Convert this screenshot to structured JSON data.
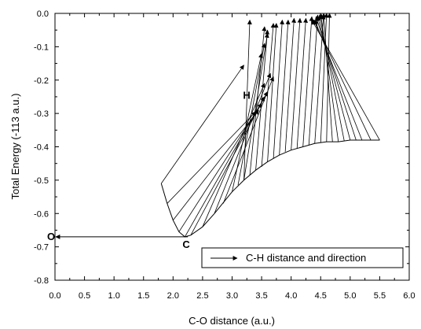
{
  "chart_data": {
    "type": "line",
    "title": "",
    "xlabel": "C-O distance (a.u.)",
    "ylabel": "Total Energy (-113  a.u.)",
    "xlim": [
      0.0,
      6.0
    ],
    "ylim": [
      -0.8,
      0.0
    ],
    "xticks": [
      "0.0",
      "0.5",
      "1.0",
      "1.5",
      "2.0",
      "2.5",
      "3.0",
      "3.5",
      "4.0",
      "4.5",
      "5.0",
      "5.5",
      "6.0"
    ],
    "yticks": [
      "-0.8",
      "-0.7",
      "-0.6",
      "-0.5",
      "-0.4",
      "-0.3",
      "-0.2",
      "-0.1",
      "0.0"
    ],
    "grid": false,
    "legend": {
      "position": "bottom-right",
      "entries": [
        {
          "label": "C-H distance and direction",
          "style": "arrow"
        }
      ]
    },
    "annotations": [
      {
        "text": "O",
        "x": 0.0,
        "y": -0.67
      },
      {
        "text": "C",
        "x": 2.25,
        "y": -0.67
      },
      {
        "text": "H",
        "x": 3.3,
        "y": -0.27
      }
    ],
    "energy_curve": {
      "x": [
        1.8,
        1.9,
        2.0,
        2.1,
        2.2,
        2.3,
        2.5,
        2.7,
        3.0,
        3.2,
        3.4,
        3.6,
        3.8,
        4.0,
        4.2,
        4.4,
        4.6,
        4.8,
        5.0,
        5.2,
        5.35,
        5.5
      ],
      "y": [
        -0.51,
        -0.57,
        -0.62,
        -0.655,
        -0.67,
        -0.665,
        -0.64,
        -0.6,
        -0.535,
        -0.5,
        -0.47,
        -0.445,
        -0.425,
        -0.41,
        -0.4,
        -0.39,
        -0.385,
        -0.385,
        -0.38,
        -0.38,
        -0.38,
        -0.38
      ]
    },
    "o_arrow": {
      "from": [
        2.25,
        -0.67
      ],
      "to": [
        0.0,
        -0.67
      ]
    },
    "ch_vectors": [
      {
        "from": [
          1.8,
          -0.51
        ],
        "to": [
          3.2,
          -0.155
        ]
      },
      {
        "from": [
          1.9,
          -0.57
        ],
        "to": [
          3.4,
          -0.295
        ]
      },
      {
        "from": [
          2.0,
          -0.62
        ],
        "to": [
          3.45,
          -0.29
        ]
      },
      {
        "from": [
          2.1,
          -0.655
        ],
        "to": [
          3.5,
          -0.27
        ]
      },
      {
        "from": [
          2.2,
          -0.67
        ],
        "to": [
          3.55,
          -0.25
        ]
      },
      {
        "from": [
          2.3,
          -0.665
        ],
        "to": [
          3.6,
          -0.235
        ]
      },
      {
        "from": [
          2.5,
          -0.64
        ],
        "to": [
          3.55,
          -0.21
        ]
      },
      {
        "from": [
          2.7,
          -0.6
        ],
        "to": [
          3.65,
          -0.18
        ]
      },
      {
        "from": [
          2.85,
          -0.57
        ],
        "to": [
          3.7,
          -0.19
        ]
      },
      {
        "from": [
          3.0,
          -0.535
        ],
        "to": [
          3.5,
          -0.12
        ]
      },
      {
        "from": [
          3.1,
          -0.515
        ],
        "to": [
          3.55,
          -0.09
        ]
      },
      {
        "from": [
          3.2,
          -0.5
        ],
        "to": [
          3.6,
          -0.06
        ]
      },
      {
        "from": [
          3.3,
          -0.485
        ],
        "to": [
          3.55,
          -0.04
        ]
      },
      {
        "from": [
          3.4,
          -0.47
        ],
        "to": [
          3.6,
          -0.05
        ]
      },
      {
        "from": [
          3.5,
          -0.46
        ],
        "to": [
          3.7,
          -0.03
        ]
      },
      {
        "from": [
          3.6,
          -0.445
        ],
        "to": [
          3.75,
          -0.03
        ]
      },
      {
        "from": [
          3.7,
          -0.435
        ],
        "to": [
          3.85,
          -0.02
        ]
      },
      {
        "from": [
          3.8,
          -0.425
        ],
        "to": [
          3.95,
          -0.02
        ]
      },
      {
        "from": [
          3.9,
          -0.415
        ],
        "to": [
          4.05,
          -0.015
        ]
      },
      {
        "from": [
          4.0,
          -0.41
        ],
        "to": [
          4.15,
          -0.015
        ]
      },
      {
        "from": [
          4.1,
          -0.405
        ],
        "to": [
          4.25,
          -0.015
        ]
      },
      {
        "from": [
          4.2,
          -0.4
        ],
        "to": [
          4.35,
          -0.01
        ]
      },
      {
        "from": [
          4.3,
          -0.395
        ],
        "to": [
          4.45,
          -0.005
        ]
      },
      {
        "from": [
          4.4,
          -0.39
        ],
        "to": [
          4.55,
          -0.005
        ]
      },
      {
        "from": [
          4.5,
          -0.388
        ],
        "to": [
          4.6,
          0.0
        ]
      },
      {
        "from": [
          4.6,
          -0.386
        ],
        "to": [
          4.65,
          0.0
        ]
      },
      {
        "from": [
          4.7,
          -0.385
        ],
        "to": [
          4.55,
          0.0
        ]
      },
      {
        "from": [
          4.8,
          -0.385
        ],
        "to": [
          4.5,
          0.0
        ]
      },
      {
        "from": [
          4.9,
          -0.383
        ],
        "to": [
          4.48,
          -0.005
        ]
      },
      {
        "from": [
          5.0,
          -0.38
        ],
        "to": [
          4.45,
          -0.01
        ]
      },
      {
        "from": [
          5.1,
          -0.38
        ],
        "to": [
          4.42,
          -0.01
        ]
      },
      {
        "from": [
          5.2,
          -0.38
        ],
        "to": [
          4.4,
          -0.02
        ]
      },
      {
        "from": [
          5.35,
          -0.38
        ],
        "to": [
          4.38,
          -0.02
        ]
      },
      {
        "from": [
          5.5,
          -0.38
        ],
        "to": [
          4.35,
          -0.02
        ]
      },
      {
        "from": [
          3.2,
          -0.5
        ],
        "to": [
          3.3,
          -0.02
        ]
      }
    ]
  }
}
